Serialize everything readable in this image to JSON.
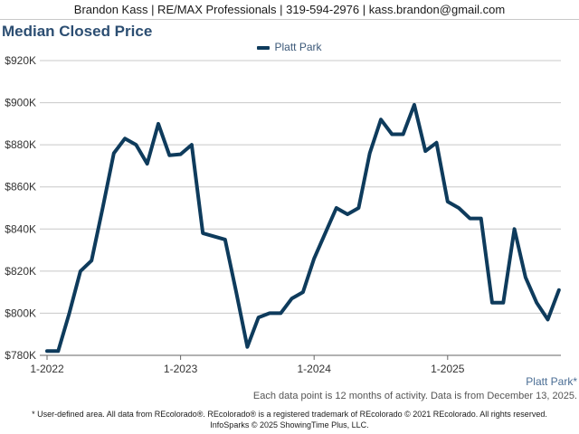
{
  "header": {
    "agent_line": "Brandon Kass | RE/MAX Professionals | 319-594-2976 | kass.brandon@gmail.com"
  },
  "chart_title": "Median Closed Price",
  "area_label": "Platt Park*",
  "note": "Each data point is 12 months of activity. Data is from December 13, 2025.",
  "footer": {
    "line1": "* User-defined area. All data from REcolorado®. REcolorado® is a registered trademark of REcolorado © 2021 REcolorado. All rights reserved.",
    "line2": "InfoSparks © 2025 ShowingTime Plus, LLC."
  },
  "colors": {
    "line": "#0e3b5c",
    "title": "#2c4e72",
    "grid": "#c8c8c8"
  },
  "chart_data": {
    "type": "line",
    "title": "Median Closed Price",
    "xlabel": "",
    "ylabel": "",
    "legend_position": "top-center",
    "grid": true,
    "ylim": [
      780000,
      920000
    ],
    "y_ticks": [
      "$780K",
      "$800K",
      "$820K",
      "$840K",
      "$860K",
      "$880K",
      "$900K",
      "$920K"
    ],
    "x_ticks": [
      "1-2022",
      "1-2023",
      "1-2024",
      "1-2025"
    ],
    "x": [
      "2022-01",
      "2022-02",
      "2022-03",
      "2022-04",
      "2022-05",
      "2022-06",
      "2022-07",
      "2022-08",
      "2022-09",
      "2022-10",
      "2022-11",
      "2022-12",
      "2023-01",
      "2023-02",
      "2023-03",
      "2023-04",
      "2023-05",
      "2023-06",
      "2023-07",
      "2023-08",
      "2023-09",
      "2023-10",
      "2023-11",
      "2023-12",
      "2024-01",
      "2024-02",
      "2024-03",
      "2024-04",
      "2024-05",
      "2024-06",
      "2024-07",
      "2024-08",
      "2024-09",
      "2024-10",
      "2024-11",
      "2024-12",
      "2025-01",
      "2025-02",
      "2025-03",
      "2025-04",
      "2025-05",
      "2025-06",
      "2025-07",
      "2025-08",
      "2025-09",
      "2025-10",
      "2025-11"
    ],
    "series": [
      {
        "name": "Platt Park",
        "values": [
          782000,
          782000,
          800000,
          820000,
          825000,
          850000,
          876000,
          883000,
          880000,
          871000,
          890000,
          875000,
          875500,
          880000,
          838000,
          836500,
          835000,
          810000,
          784000,
          798000,
          800000,
          800000,
          807000,
          810000,
          826000,
          838000,
          850000,
          847000,
          850000,
          876000,
          892000,
          885000,
          885000,
          899000,
          877000,
          881000,
          853000,
          850000,
          845000,
          845000,
          805000,
          805000,
          840000,
          817000,
          805000,
          797000,
          811000
        ]
      }
    ]
  }
}
